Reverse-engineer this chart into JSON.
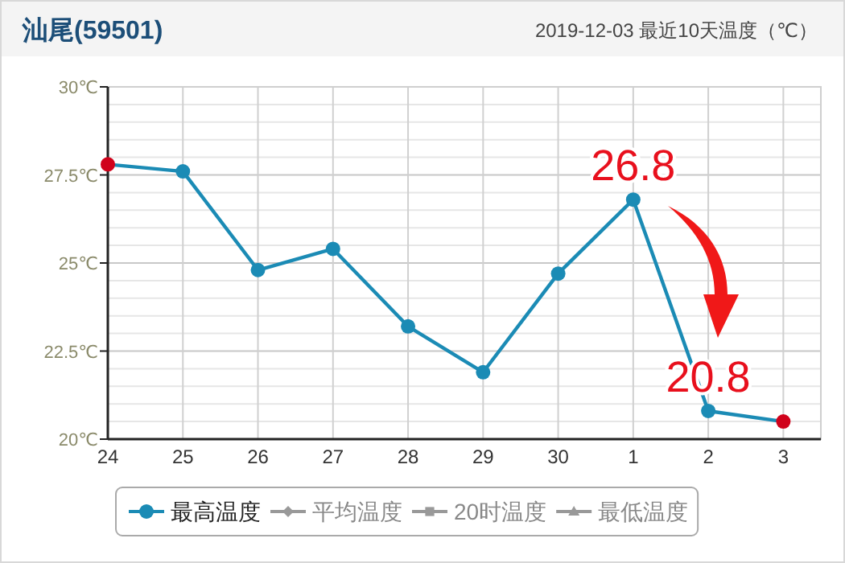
{
  "chart_data": {
    "type": "line",
    "title": "汕尾(59501)",
    "subtitle": "2019-12-03 最近10天温度（℃）",
    "categories": [
      "24",
      "25",
      "26",
      "27",
      "28",
      "29",
      "30",
      "1",
      "2",
      "3"
    ],
    "series": [
      {
        "name": "最高温度",
        "color": "#1b8bb5",
        "values": [
          27.8,
          27.6,
          24.8,
          25.4,
          23.2,
          21.9,
          24.7,
          26.8,
          20.8,
          20.5
        ],
        "colors": [
          "#d0021b",
          "#1b8bb5",
          "#1b8bb5",
          "#1b8bb5",
          "#1b8bb5",
          "#1b8bb5",
          "#1b8bb5",
          "#1b8bb5",
          "#1b8bb5",
          "#d0021b"
        ],
        "marker": "circle"
      },
      {
        "name": "平均温度",
        "color": "#999999",
        "values": [
          null,
          null,
          null,
          null,
          null,
          null,
          null,
          null,
          null,
          null
        ],
        "marker": "diamond"
      },
      {
        "name": "20时温度",
        "color": "#999999",
        "values": [
          null,
          null,
          null,
          null,
          null,
          null,
          null,
          null,
          null,
          null
        ],
        "marker": "square"
      },
      {
        "name": "最低温度",
        "color": "#999999",
        "values": [
          null,
          null,
          null,
          null,
          null,
          null,
          null,
          null,
          null,
          null
        ],
        "marker": "triangle"
      }
    ],
    "ylim": [
      20,
      30
    ],
    "yticks": [
      {
        "value": 20,
        "label": "20℃"
      },
      {
        "value": 22.5,
        "label": "22.5℃"
      },
      {
        "value": 25,
        "label": "25℃"
      },
      {
        "value": 27.5,
        "label": "27.5℃"
      },
      {
        "value": 30,
        "label": "30℃"
      }
    ],
    "grid": true,
    "legend": "bottom",
    "line_style": "solid",
    "annotations": [
      {
        "text": "26.8",
        "x": "1",
        "y": 26.8
      },
      {
        "text": "20.8",
        "x": "2",
        "y": 20.8
      }
    ]
  }
}
